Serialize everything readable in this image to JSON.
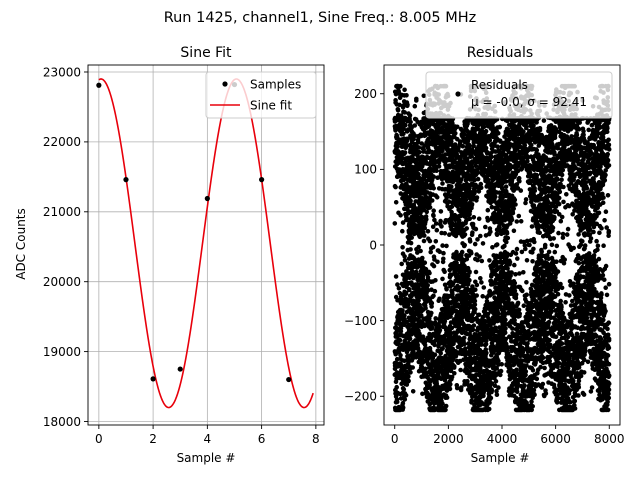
{
  "figure_title": "Run 1425, channel1, Sine Freq.: 8.005 MHz",
  "colors": {
    "fit": "#e8000b",
    "samples": "#000000",
    "grid": "#b0b0b0"
  },
  "chart_data": [
    {
      "type": "line",
      "title": "Sine Fit",
      "xlabel": "Sample #",
      "ylabel": "ADC Counts",
      "xlim": [
        -0.4,
        8.3
      ],
      "ylim": [
        17950,
        23100
      ],
      "grid": true,
      "xticks": [
        0,
        2,
        4,
        6,
        8
      ],
      "yticks": [
        18000,
        19000,
        20000,
        21000,
        22000,
        23000
      ],
      "legend_position": "top-right",
      "series": [
        {
          "name": "Samples",
          "style": "scatter",
          "x": [
            0,
            1,
            2,
            3,
            4,
            5,
            6,
            7
          ],
          "y": [
            22810,
            21460,
            18610,
            18750,
            21190,
            22820,
            21460,
            18600
          ]
        },
        {
          "name": "Sine fit",
          "style": "line",
          "function": "sine",
          "offset": 20550,
          "amplitude": 2350,
          "period_samples": 4.99,
          "peak_at_sample": 0.08,
          "x_range": [
            0,
            7.9
          ]
        }
      ]
    },
    {
      "type": "scatter",
      "title": "Residuals",
      "xlabel": "Sample #",
      "ylabel": "",
      "xlim": [
        -400,
        8400
      ],
      "ylim": [
        -238,
        238
      ],
      "grid": false,
      "xticks": [
        0,
        2000,
        4000,
        6000,
        8000
      ],
      "yticks": [
        -200,
        -100,
        0,
        100,
        200
      ],
      "legend_position": "top-right",
      "series": [
        {
          "name": "Residuals",
          "legend_stats": "μ = -0.0, σ = 92.41",
          "n_points": 8000,
          "mean": 0.0,
          "std": 92.41,
          "min": -218,
          "max": 210,
          "band_period_samples": 1600
        }
      ]
    }
  ]
}
